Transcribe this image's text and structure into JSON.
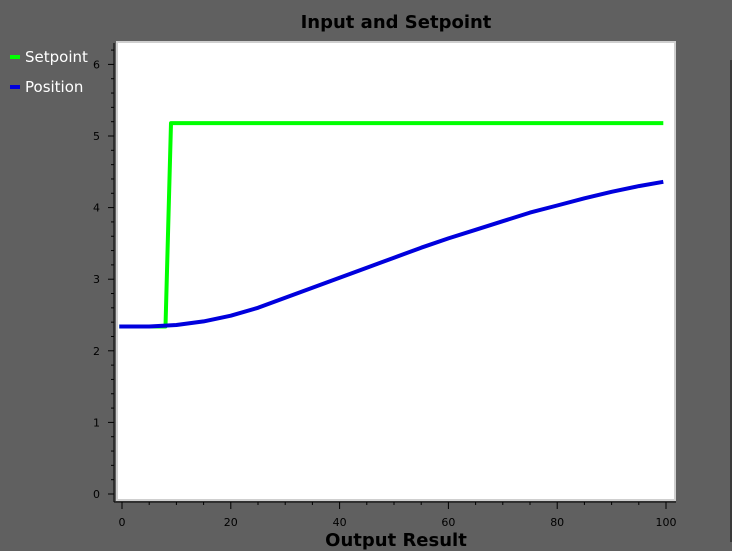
{
  "chart_data": {
    "type": "line",
    "title": "Input and Setpoint",
    "xlabel": "Output Result",
    "ylabel": "",
    "xlim": [
      0,
      100
    ],
    "ylim": [
      0,
      6.3
    ],
    "xticks": [
      0,
      20,
      40,
      60,
      80,
      100
    ],
    "yticks": [
      0,
      1,
      2,
      3,
      4,
      5,
      6
    ],
    "grid": false,
    "legend_position": "top-left",
    "series": [
      {
        "name": "Setpoint",
        "color": "#00ff00",
        "x": [
          -0.5,
          8,
          9,
          99.5
        ],
        "y": [
          2.34,
          2.34,
          5.18,
          5.18
        ]
      },
      {
        "name": "Position",
        "color": "#0000dd",
        "x": [
          -0.5,
          5,
          10,
          15,
          20,
          25,
          30,
          35,
          40,
          45,
          50,
          55,
          60,
          65,
          70,
          75,
          80,
          85,
          90,
          95,
          99.5
        ],
        "y": [
          2.34,
          2.34,
          2.36,
          2.41,
          2.49,
          2.6,
          2.74,
          2.88,
          3.02,
          3.16,
          3.3,
          3.44,
          3.57,
          3.69,
          3.81,
          3.93,
          4.03,
          4.13,
          4.22,
          4.3,
          4.36
        ]
      }
    ]
  }
}
